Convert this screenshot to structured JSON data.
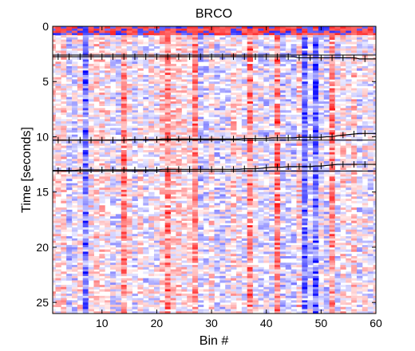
{
  "chart_data": {
    "type": "heatmap",
    "title": "BRCO",
    "xlabel": "Bin #",
    "ylabel": "Time [seconds]",
    "xlim": [
      1,
      60
    ],
    "ylim": [
      0,
      26
    ],
    "y_reversed": true,
    "x_ticks": [
      10,
      20,
      30,
      40,
      50,
      60
    ],
    "y_ticks": [
      0,
      5,
      10,
      15,
      20,
      25
    ],
    "colormap": {
      "negative": "#0000ff",
      "zero": "#ffffff",
      "positive": "#ff0000"
    },
    "grid": false,
    "legend": "none",
    "notable_columns": {
      "strong_negative_bins": [
        7,
        49,
        47
      ],
      "strong_positive_bins": [
        14,
        22,
        27,
        37,
        42,
        52
      ]
    },
    "event_lines": [
      {
        "name": "",
        "times": [
          2.75,
          2.75,
          2.75,
          2.75,
          2.75,
          2.75,
          2.75,
          2.75,
          2.75,
          2.75,
          2.75,
          2.75,
          2.75,
          2.75,
          2.75,
          2.75,
          2.75,
          2.75,
          2.75,
          2.75,
          2.75,
          2.75,
          2.75,
          2.75,
          2.75,
          2.75,
          2.75,
          2.75,
          2.75,
          2.75,
          2.75,
          2.75,
          2.75,
          2.75,
          2.75,
          2.75,
          2.75,
          2.75,
          2.75,
          2.75,
          2.75,
          2.75,
          2.75,
          2.75,
          2.75,
          2.85,
          2.85,
          2.85,
          2.85,
          2.85,
          2.85,
          2.85,
          2.85,
          2.85,
          2.85,
          2.85,
          2.95,
          2.95,
          2.95,
          2.95
        ]
      },
      {
        "name": "",
        "times": [
          10.3,
          10.3,
          10.3,
          10.3,
          10.3,
          10.3,
          10.3,
          10.3,
          10.3,
          10.3,
          10.3,
          10.3,
          10.3,
          10.3,
          10.25,
          10.25,
          10.25,
          10.25,
          10.25,
          10.25,
          10.2,
          10.2,
          10.2,
          10.2,
          10.2,
          10.2,
          10.2,
          10.2,
          10.2,
          10.2,
          10.2,
          10.2,
          10.2,
          10.2,
          10.2,
          10.15,
          10.15,
          10.15,
          10.15,
          10.15,
          10.1,
          10.1,
          10.1,
          10.1,
          10.1,
          10.05,
          10.05,
          10.05,
          10.05,
          10.05,
          10.0,
          10.0,
          9.9,
          9.85,
          9.8,
          9.75,
          9.7,
          9.7,
          9.7,
          9.7
        ]
      },
      {
        "name": "",
        "times": [
          13.05,
          13.05,
          13.05,
          13.05,
          13.05,
          13.0,
          13.0,
          13.0,
          13.0,
          13.0,
          13.0,
          13.0,
          13.0,
          13.0,
          13.0,
          13.0,
          13.0,
          13.0,
          13.0,
          13.0,
          12.95,
          12.95,
          12.95,
          12.95,
          12.95,
          12.95,
          12.95,
          12.95,
          12.95,
          12.95,
          12.95,
          12.95,
          12.95,
          12.95,
          12.95,
          12.9,
          12.9,
          12.9,
          12.85,
          12.8,
          12.75,
          12.75,
          12.75,
          12.7,
          12.7,
          12.7,
          12.7,
          12.7,
          12.65,
          12.65,
          12.6,
          12.55,
          12.5,
          12.5,
          12.5,
          12.5,
          12.5,
          12.5,
          12.5,
          12.5
        ]
      }
    ],
    "separator_times": [
      2.6,
      10.3,
      13.1
    ]
  }
}
